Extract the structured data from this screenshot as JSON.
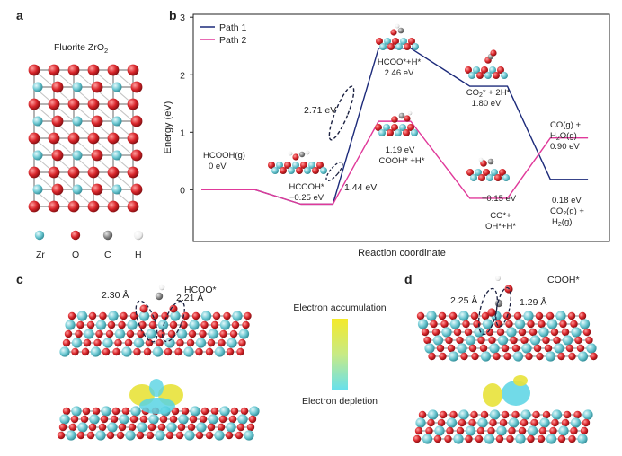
{
  "panels": {
    "a": "a",
    "b": "b",
    "c": "c",
    "d": "d"
  },
  "panel_a": {
    "title_main": "Fluorite ZrO",
    "title_sub": "2",
    "legend": [
      {
        "label": "Zr",
        "color": "#6ec9d3"
      },
      {
        "label": "O",
        "color": "#d8252a"
      },
      {
        "label": "C",
        "color": "#8a8a8a"
      },
      {
        "label": "H",
        "color": "#f2f2f2"
      }
    ]
  },
  "chart_data": {
    "type": "line",
    "xlabel": "Reaction coordinate",
    "ylabel": "Energy (eV)",
    "ylim": [
      -0.9,
      3.05
    ],
    "yticks": [
      0,
      1,
      2,
      3
    ],
    "legend_position": "top-left",
    "series": [
      {
        "name": "Path 1",
        "color": "#1c2a7a",
        "values": [
          0,
          -0.25,
          2.46,
          1.8,
          0.18
        ]
      },
      {
        "name": "Path 2",
        "color": "#e0399a",
        "values": [
          0,
          -0.25,
          1.19,
          -0.15,
          0.9
        ]
      }
    ],
    "states": [
      {
        "id": "IS",
        "x0": 0,
        "x1": 1
      },
      {
        "id": "TS1",
        "x0": 1.85,
        "x1": 2.45
      },
      {
        "id": "TS2",
        "x0": 3.3,
        "x1": 3.9
      },
      {
        "id": "TS3",
        "x0": 5,
        "x1": 5.7
      },
      {
        "id": "FS",
        "x0": 6.5,
        "x1": 7.2
      }
    ],
    "annotations": {
      "hcooh": [
        "HCOOH(g)",
        "0 eV"
      ],
      "hcooh_ads": [
        "HCOOH*",
        "−0.25 eV"
      ],
      "hcoo_h": [
        "HCOO*+H*",
        "2.46 eV"
      ],
      "co2_2h": [
        "CO",
        "2",
        "* + 2H*",
        "1.80 eV"
      ],
      "cooh_h": [
        "1.19 eV",
        "COOH* +H*"
      ],
      "co_oh_h": [
        "−0.15 eV",
        "CO*+",
        "OH*+H*"
      ],
      "co_h2o": [
        "CO(g) +",
        "H",
        "2",
        "O(g)",
        "0.90 eV"
      ],
      "co2_h2": [
        "0.18 eV",
        "CO",
        "2",
        "(g) +",
        "H",
        "2",
        "(g)"
      ],
      "barrier1": "2.71 eV",
      "barrier2": "1.44 eV"
    }
  },
  "panel_c": {
    "title": "HCOO*",
    "bond1": "2.30 Å",
    "bond2": "2.21 Å"
  },
  "panel_d": {
    "title": "COOH*",
    "bond1": "2.25 Å",
    "bond2": "1.29 Å"
  },
  "colorbar": {
    "top": "Electron accumulation",
    "bottom": "Electron depletion",
    "top_color": "#f4ea2a",
    "bottom_color": "#66e0ee"
  },
  "colors": {
    "zr": "#6ec9d3",
    "o": "#d8252a",
    "c": "#8a8a8a",
    "h": "#f2f2f2",
    "isosurface_yellow": "#e8e23a",
    "isosurface_cyan": "#58d3e4",
    "ellipse": "#1a2040"
  }
}
